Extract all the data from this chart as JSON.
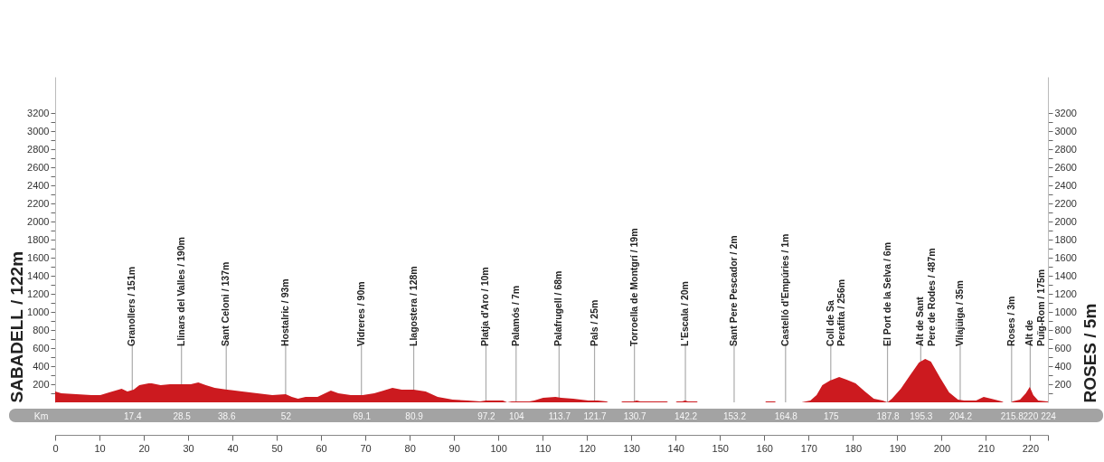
{
  "chart_data": {
    "type": "area",
    "color": "#cc1a1f",
    "grid": false,
    "ylabel": "SABADELL / 122m",
    "y2label": "ROSES / 5m",
    "x2label": "Km",
    "x": [
      0,
      1.4,
      4.8,
      8.2,
      10.2,
      12.2,
      14.3,
      15,
      16.3,
      17.7,
      19,
      21.1,
      21.8,
      23.8,
      25.9,
      28.6,
      30.6,
      32.3,
      34,
      36,
      38.8,
      42.2,
      45.6,
      49,
      52,
      53.4,
      54.8,
      56.5,
      59.2,
      60.9,
      62.2,
      63.9,
      66.7,
      69.4,
      72,
      74.1,
      76.1,
      78.2,
      80.9,
      83.6,
      86.3,
      89.7,
      93.1,
      95.9,
      97.2,
      99.3,
      101,
      102,
      103,
      107,
      108.1,
      110.1,
      112.9,
      114.2,
      116.9,
      120.3,
      122.4,
      124.4,
      124.8,
      127.7,
      128,
      130.5,
      131.2,
      132,
      138,
      138.3,
      140,
      140.3,
      141.5,
      142.1,
      142.8,
      144.8,
      145,
      160.2,
      160.4,
      162.4,
      162.6,
      168.4,
      170.4,
      171.8,
      173.1,
      174.8,
      176.9,
      178.6,
      180.6,
      182.7,
      184.7,
      186.7,
      187.8,
      188.8,
      190.8,
      192.9,
      194.9,
      196.3,
      197.6,
      199.7,
      201.7,
      203.7,
      205.1,
      207.8,
      209.5,
      211.2,
      213.6,
      214,
      215.8,
      216,
      217.7,
      219,
      219.9,
      220.7,
      221.8,
      223.8,
      224
    ],
    "values": [
      120,
      100,
      90,
      80,
      80,
      110,
      140,
      150,
      120,
      140,
      190,
      210,
      210,
      190,
      200,
      200,
      200,
      220,
      190,
      160,
      140,
      120,
      100,
      80,
      90,
      60,
      40,
      60,
      60,
      100,
      130,
      100,
      80,
      80,
      100,
      130,
      160,
      140,
      140,
      120,
      60,
      30,
      20,
      10,
      20,
      20,
      20,
      0,
      10,
      10,
      20,
      50,
      60,
      50,
      40,
      20,
      20,
      10,
      0,
      0,
      10,
      10,
      20,
      10,
      10,
      0,
      0,
      10,
      10,
      20,
      10,
      10,
      0,
      0,
      10,
      10,
      0,
      0,
      20,
      80,
      190,
      240,
      280,
      250,
      210,
      120,
      40,
      20,
      0,
      40,
      150,
      300,
      440,
      480,
      450,
      270,
      110,
      30,
      20,
      20,
      60,
      40,
      10,
      0,
      0,
      10,
      30,
      100,
      170,
      80,
      20,
      10,
      10
    ],
    "xlim": [
      0,
      224
    ],
    "xticks": [
      0,
      10,
      20,
      30,
      40,
      50,
      60,
      70,
      80,
      90,
      100,
      110,
      120,
      130,
      140,
      150,
      160,
      170,
      180,
      190,
      200,
      210,
      220,
      {
        "value": 224,
        "label": null
      }
    ],
    "x2lim": [
      0,
      224
    ],
    "x2ticks": [
      17.4,
      28.5,
      38.6,
      52,
      69.1,
      80.9,
      97.2,
      104,
      113.7,
      121.7,
      130.7,
      142.2,
      153.2,
      164.8,
      175,
      187.8,
      195.3,
      204.2,
      215.8,
      220,
      224
    ],
    "ylim": [
      0,
      3600
    ],
    "yticks": [
      {
        "value": 100,
        "label": null
      },
      200,
      {
        "value": 300,
        "label": null
      },
      400,
      {
        "value": 500,
        "label": null
      },
      600,
      {
        "value": 700,
        "label": null
      },
      800,
      {
        "value": 900,
        "label": null
      },
      1000,
      {
        "value": 1100,
        "label": null
      },
      1200,
      {
        "value": 1300,
        "label": null
      },
      1400,
      {
        "value": 1500,
        "label": null
      },
      1600,
      {
        "value": 1700,
        "label": null
      },
      1800,
      {
        "value": 1900,
        "label": null
      },
      2000,
      {
        "value": 2100,
        "label": null
      },
      2200,
      {
        "value": 2300,
        "label": null
      },
      2400,
      {
        "value": 2500,
        "label": null
      },
      2600,
      {
        "value": 2700,
        "label": null
      },
      2800,
      {
        "value": 2900,
        "label": null
      },
      3000,
      {
        "value": 3100,
        "label": null
      },
      3200
    ],
    "y2lim": [
      0,
      3600
    ],
    "y2ticks": [
      {
        "value": 100,
        "label": null
      },
      200,
      {
        "value": 300,
        "label": null
      },
      400,
      {
        "value": 500,
        "label": null
      },
      600,
      {
        "value": 700,
        "label": null
      },
      800,
      {
        "value": 900,
        "label": null
      },
      1000,
      {
        "value": 1100,
        "label": null
      },
      1200,
      {
        "value": 1300,
        "label": null
      },
      1400,
      {
        "value": 1500,
        "label": null
      },
      1600,
      {
        "value": 1700,
        "label": null
      },
      1800,
      {
        "value": 1900,
        "label": null
      },
      2000,
      {
        "value": 2100,
        "label": null
      },
      2200,
      {
        "value": 2300,
        "label": null
      },
      2400,
      {
        "value": 2500,
        "label": null
      },
      2600,
      {
        "value": 2700,
        "label": null
      },
      2800,
      {
        "value": 2900,
        "label": null
      },
      3000,
      {
        "value": 3100,
        "label": null
      },
      3200
    ],
    "ref_lines": [
      {
        "axis": "x",
        "value": 17.4,
        "label": "Granollers / 151m"
      },
      {
        "axis": "x",
        "value": 28.5,
        "label": "Llinars del Valles / 190m"
      },
      {
        "axis": "x",
        "value": 38.6,
        "label": "Sant Celoni / 137m"
      },
      {
        "axis": "x",
        "value": 52,
        "label": "Hostalric / 93m"
      },
      {
        "axis": "x",
        "value": 69.1,
        "label": "Vidreres / 90m"
      },
      {
        "axis": "x",
        "value": 80.9,
        "label": "Llagostera / 128m"
      },
      {
        "axis": "x",
        "value": 97.2,
        "label": "Platja d'Aro / 10m"
      },
      {
        "axis": "x",
        "value": 104,
        "label": "Palamós / 7m"
      },
      {
        "axis": "x",
        "value": 113.7,
        "label": "Palafrugell / 68m"
      },
      {
        "axis": "x",
        "value": 121.7,
        "label": "Pals / 25m"
      },
      {
        "axis": "x",
        "value": 130.7,
        "label": "Torroella de Montgrí / 19m"
      },
      {
        "axis": "x",
        "value": 142.2,
        "label": "L'Escala / 20m"
      },
      {
        "axis": "x",
        "value": 153.2,
        "label": "Sant Pere Pescador / 2m"
      },
      {
        "axis": "x",
        "value": 164.8,
        "label": "Castelló d'Empúries / 1m"
      },
      {
        "axis": "x",
        "value": 175,
        "label": "Coll de Sa\nPerafita / 256m"
      },
      {
        "axis": "x",
        "value": 187.8,
        "label": "El Port de la Selva / 6m"
      },
      {
        "axis": "x",
        "value": 195.3,
        "label": "Alt de Sant\nPere de Rodes / 487m"
      },
      {
        "axis": "x",
        "value": 204.2,
        "label": "Vilajüiga / 35m"
      },
      {
        "axis": "x",
        "value": 215.8,
        "label": "Roses / 3m"
      },
      {
        "axis": "x",
        "value": 220,
        "label": "Alt de\nPuïg-Rom / 175m"
      }
    ]
  }
}
